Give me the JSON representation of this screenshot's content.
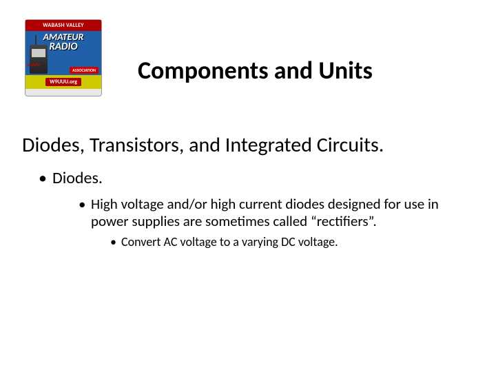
{
  "logo": {
    "banner_text": "WABASH VALLEY",
    "main_text_1": "AMATEUR",
    "main_text_2": "RADIO",
    "assoc_text": "ASSOCIATION",
    "callsign": "W9UUU.org",
    "banner_bg": "#b00000",
    "mid_bg": "#2060a8",
    "bottom_bg": "#d0c800",
    "text_color": "#ffffff"
  },
  "slide": {
    "title": "Components and Units",
    "subtitle": "Diodes, Transistors, and Integrated Circuits.",
    "bullet_l1": "Diodes.",
    "bullet_l2": "High voltage and/or high current diodes designed for use in power supplies are sometimes called “rectifiers”.",
    "bullet_l3": "Convert AC voltage to a varying DC voltage.",
    "title_fontsize": 36,
    "subtitle_fontsize": 30,
    "l1_fontsize": 24,
    "l2_fontsize": 21,
    "l3_fontsize": 18,
    "text_color": "#000000",
    "background_color": "#ffffff"
  }
}
